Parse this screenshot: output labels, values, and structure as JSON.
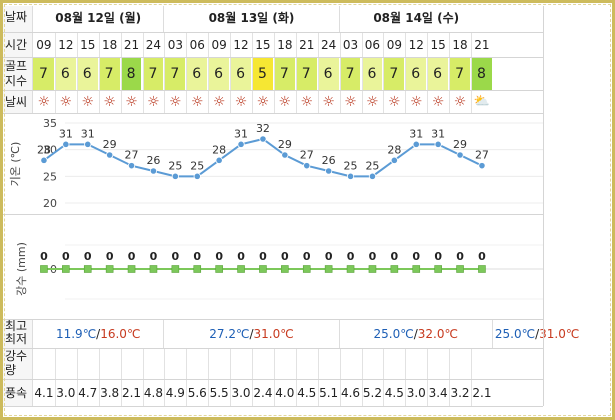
{
  "row_labels": {
    "date": "날짜",
    "time": "시간",
    "golf_index_line1": "골프",
    "golf_index_line2": "지수",
    "weather": "날씨",
    "temp_axis": "기온 (℃)",
    "rain_axis": "강수 (mm)",
    "minmax_line1": "최고",
    "minmax_line2": "최저",
    "precip_line1": "강수",
    "precip_line2": "량",
    "wind": "풍속"
  },
  "days": [
    {
      "label": "08월 12일 (월)",
      "times": [
        "09",
        "12",
        "15",
        "18",
        "21",
        "24"
      ]
    },
    {
      "label": "08월 13일 (화)",
      "times": [
        "03",
        "06",
        "09",
        "12",
        "15",
        "18",
        "21",
        "24"
      ]
    },
    {
      "label": "08월 14일 (수)",
      "times": [
        "03",
        "06",
        "09",
        "12",
        "15",
        "18",
        "21"
      ]
    }
  ],
  "golf_index": [
    7,
    6,
    6,
    7,
    8,
    7,
    7,
    6,
    6,
    6,
    5,
    7,
    7,
    6,
    7,
    6,
    7,
    6,
    6,
    7,
    8
  ],
  "golf_colors": {
    "5": "#f6e733",
    "6": "#eaf49a",
    "7": "#d7ec67",
    "8": "#9bd94a"
  },
  "weather_icons": [
    "sun-icon",
    "sun-icon",
    "sun-icon",
    "sun-icon",
    "sun-icon",
    "sun-icon",
    "sun-icon",
    "sun-icon",
    "sun-icon",
    "sun-icon",
    "sun-icon",
    "sun-icon",
    "sun-icon",
    "sun-icon",
    "sun-icon",
    "sun-icon",
    "sun-icon",
    "sun-icon",
    "sun-icon",
    "sun-icon",
    "cloud-sun-icon"
  ],
  "icon_glyphs": {
    "sun-icon": "☼",
    "cloud-sun-icon": "⛅"
  },
  "chart_data": [
    {
      "type": "line",
      "x": [
        "09",
        "12",
        "15",
        "18",
        "21",
        "24",
        "03",
        "06",
        "09",
        "12",
        "15",
        "18",
        "21",
        "24",
        "03",
        "06",
        "09",
        "12",
        "15",
        "18",
        "21"
      ],
      "series": [
        {
          "values": [
            28,
            31,
            31,
            29,
            27,
            26,
            25,
            25,
            28,
            31,
            32,
            29,
            27,
            26,
            25,
            25,
            28,
            31,
            31,
            29,
            27
          ]
        }
      ],
      "ylabel": "기온 (℃)",
      "yticks": [
        35,
        30,
        25,
        20
      ],
      "ylim": [
        20,
        35
      ],
      "color": "#5b9bd5"
    },
    {
      "type": "line",
      "x": [
        "09",
        "12",
        "15",
        "18",
        "21",
        "24",
        "03",
        "06",
        "09",
        "12",
        "15",
        "18",
        "21",
        "24",
        "03",
        "06",
        "09",
        "12",
        "15",
        "18",
        "21"
      ],
      "series": [
        {
          "values": [
            0,
            0,
            0,
            0,
            0,
            0,
            0,
            0,
            0,
            0,
            0,
            0,
            0,
            0,
            0,
            0,
            0,
            0,
            0,
            0,
            0
          ]
        }
      ],
      "ylabel": "강수 (mm)",
      "yticks": [
        0
      ],
      "color": "#7cc85a"
    }
  ],
  "minmax": [
    {
      "min": "11.9℃",
      "sep": "/",
      "max": "16.0℃"
    },
    {
      "min": "27.2℃",
      "sep": "/",
      "max": "31.0℃"
    },
    {
      "min": "25.0℃",
      "sep": "/",
      "max": "32.0℃"
    },
    {
      "min": "25.0℃",
      "sep": "/",
      "max": "31.0℃"
    }
  ],
  "wind": [
    "4.1",
    "3.0",
    "4.7",
    "3.8",
    "2.1",
    "4.8",
    "4.9",
    "5.6",
    "5.5",
    "3.0",
    "2.4",
    "4.0",
    "4.5",
    "5.1",
    "4.6",
    "5.2",
    "4.5",
    "3.0",
    "3.4",
    "3.2",
    "2.1"
  ]
}
